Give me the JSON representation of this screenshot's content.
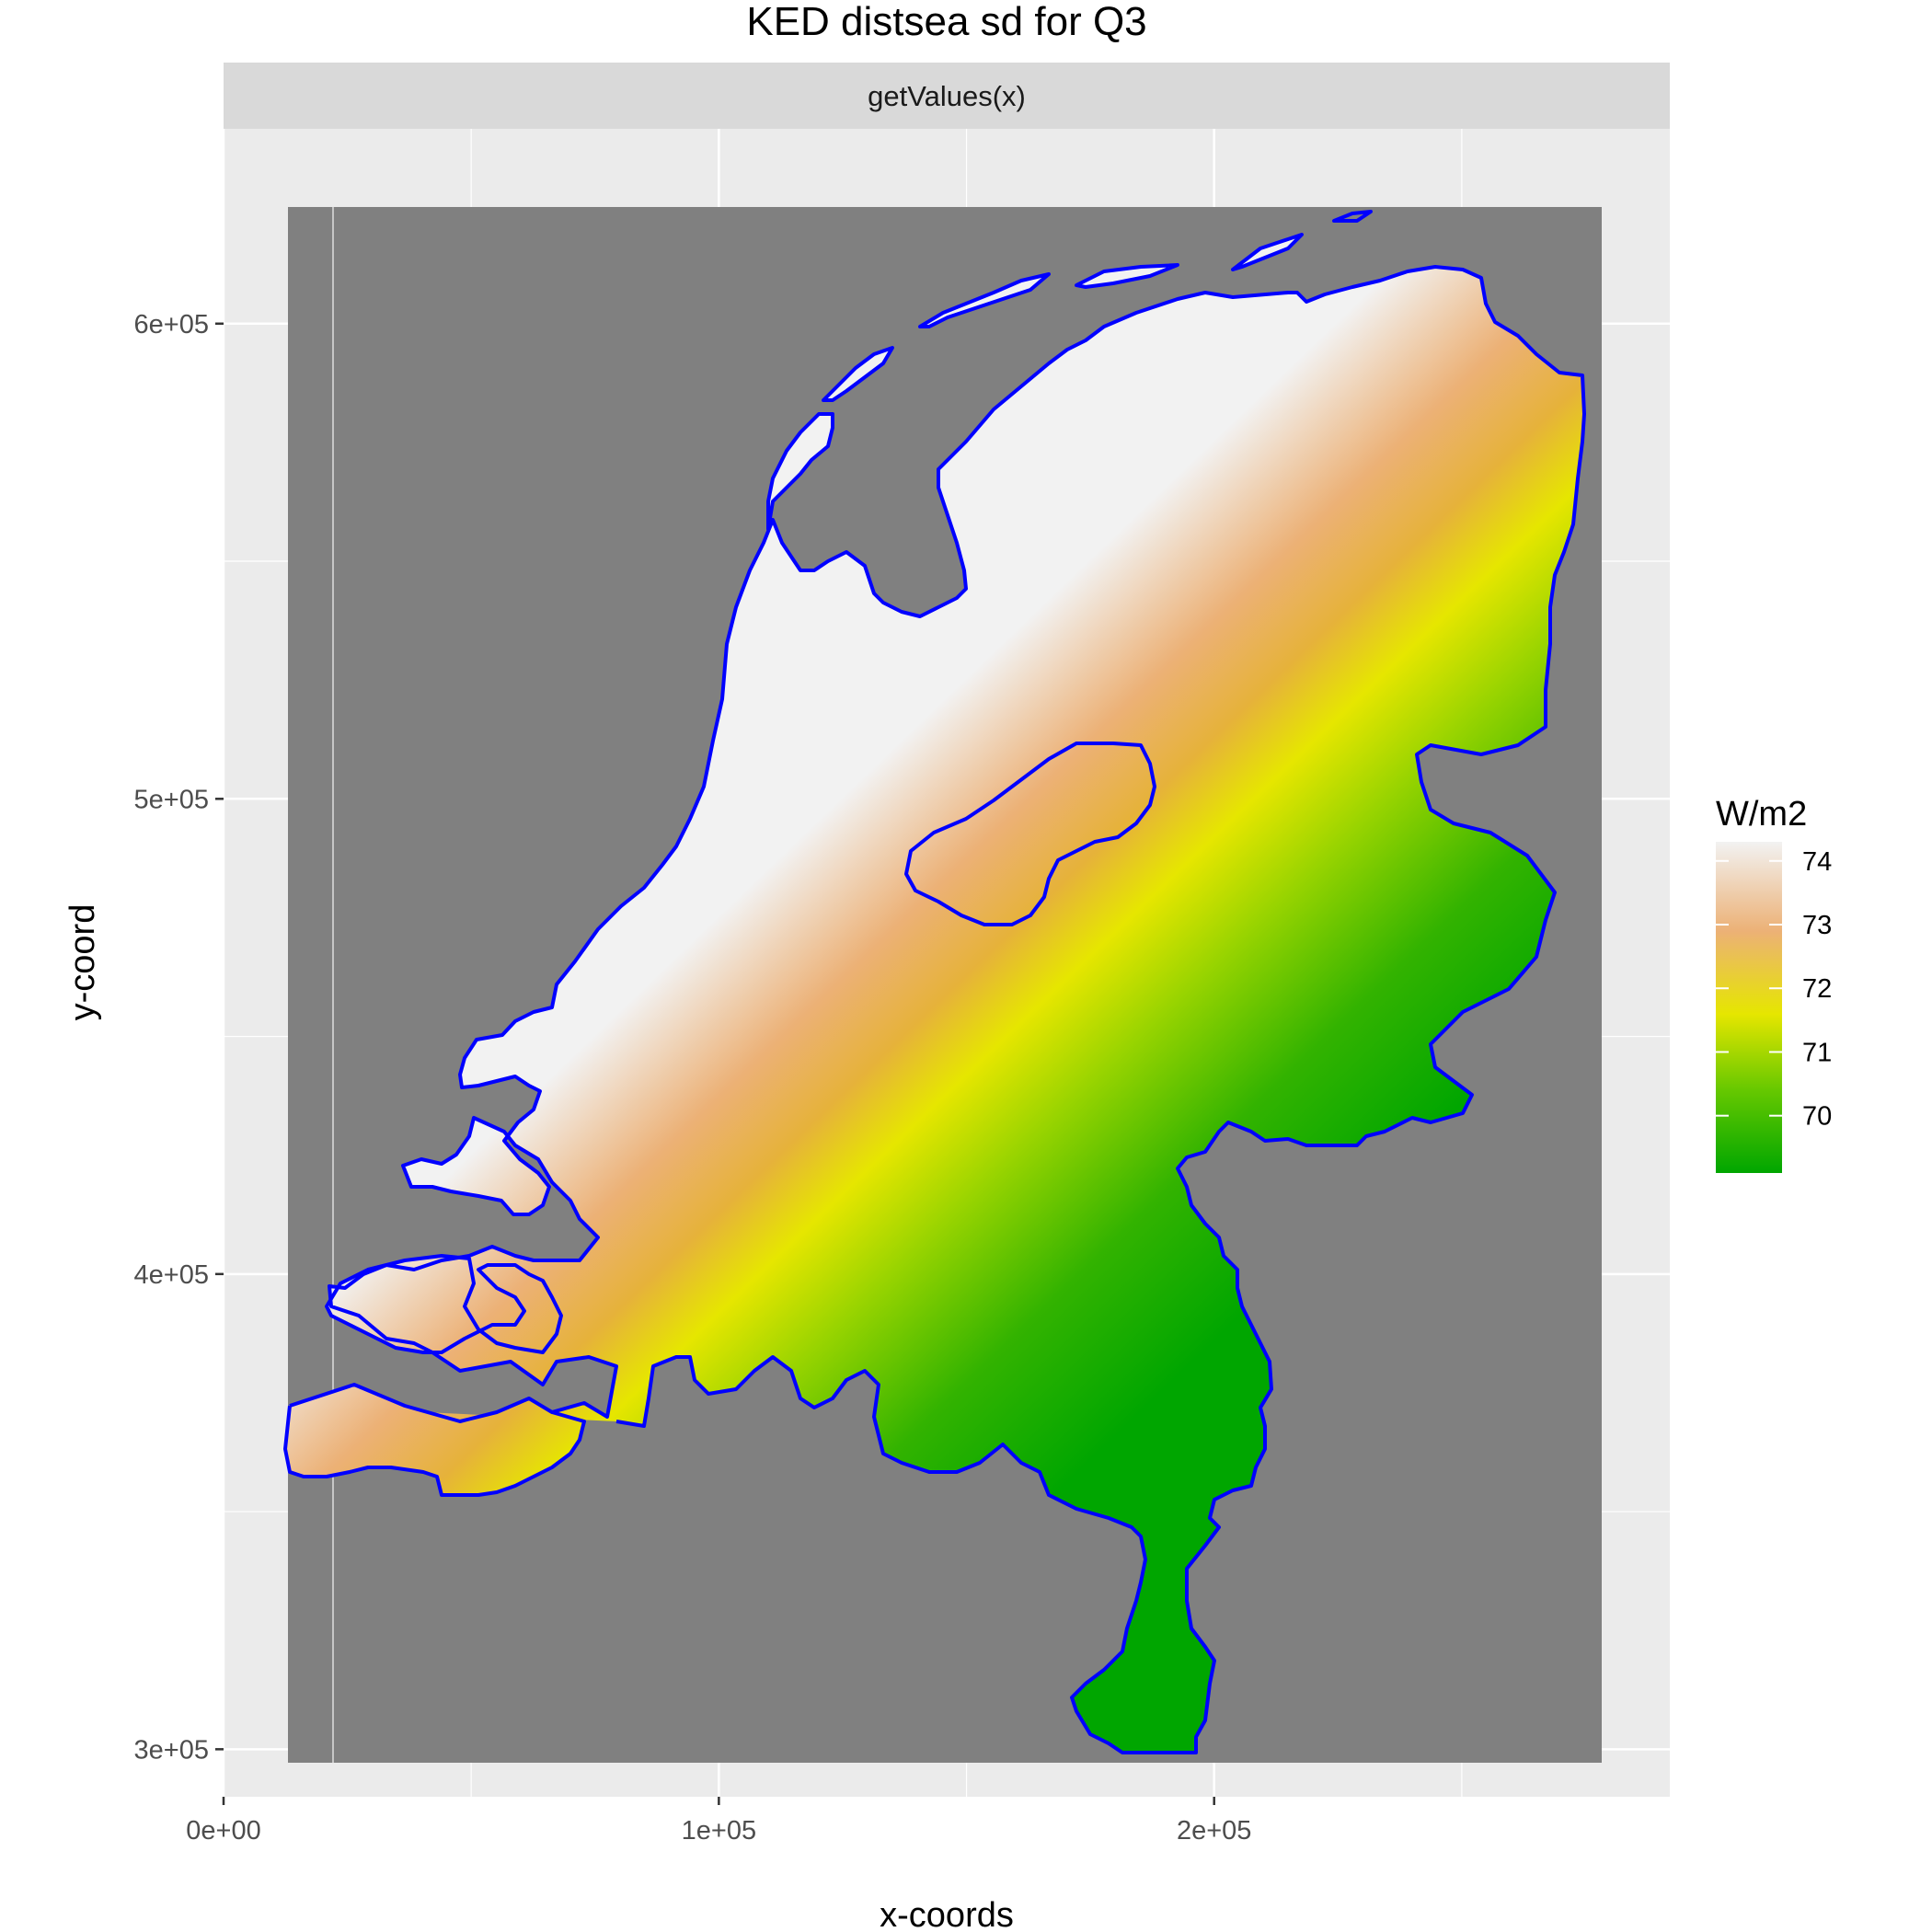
{
  "chart_data": {
    "type": "heatmap",
    "title": "KED distsea sd for Q3",
    "facet_label": "getValues(x)",
    "xlabel": "x-coords",
    "ylabel": "y-coord",
    "xlim": [
      0,
      292000
    ],
    "ylim": [
      290000,
      641000
    ],
    "x_ticks": [
      {
        "value": 0,
        "label": "0e+00"
      },
      {
        "value": 100000,
        "label": "1e+05"
      },
      {
        "value": 200000,
        "label": "2e+05"
      }
    ],
    "y_ticks": [
      {
        "value": 300000,
        "label": "3e+05"
      },
      {
        "value": 400000,
        "label": "4e+05"
      },
      {
        "value": 500000,
        "label": "5e+05"
      },
      {
        "value": 600000,
        "label": "6e+05"
      }
    ],
    "raster_extent": {
      "x": [
        13000,
        279000
      ],
      "y": [
        306000,
        621000
      ]
    },
    "background_value_color": "#808080",
    "legend": {
      "title": "W/m2",
      "placement": "right",
      "range": [
        69.1,
        74.3
      ],
      "ticks": [
        74,
        73,
        72,
        71,
        70
      ],
      "colors": [
        "#00a600",
        "#e6e600",
        "#ecb176",
        "#f2f2f2"
      ],
      "color_stops": [
        69.1,
        71.6,
        72.9,
        74.3
      ]
    },
    "value_field": {
      "description_free": true,
      "gradient_axis": "northwest-southeast",
      "max_value": 74.3,
      "min_value": 69.1
    },
    "boundary_color": "#0000ff",
    "grid": true
  }
}
